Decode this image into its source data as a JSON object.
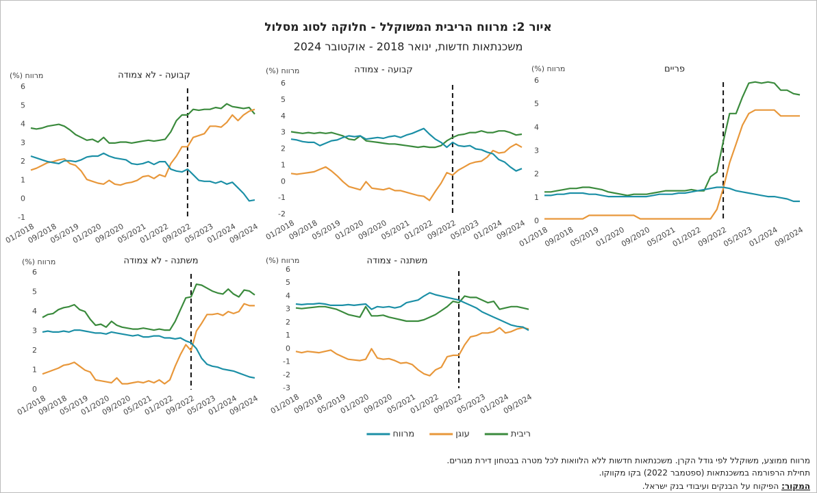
{
  "title": "איור 2: מרווח הריבית המשוקלל - חלוקה לסוג מסלול",
  "subtitle": "משכנתאות חדשות, ינואר 2018 - אוקטובר 2024",
  "notes": [
    "מרווח ממוצע, משוקלל לפי גודל הקרן. משכנתאות חדשות ללא הלוואות לכל מטרה בבטחון דירת מגורים.",
    "תחילת הרפורמה במשכנתאות (ספטמבר 2022) בקו  מקווקו."
  ],
  "source_label": "המקור:",
  "source_text": " הפיקוח על הבנקים ועיבודי בנק ישראל.",
  "chart_data": [
    {
      "type": "line",
      "title": "קבועה - לא צמודה",
      "ylabel": "מרווח (%)",
      "grid": false,
      "vline_x": "09/2022",
      "categories": [
        "01/2018",
        null,
        null,
        null,
        "09/2018",
        null,
        null,
        null,
        "05/2019",
        null,
        null,
        null,
        "01/2020",
        null,
        null,
        null,
        "09/2020",
        null,
        null,
        null,
        "05/2021",
        null,
        null,
        null,
        "01/2022",
        null,
        null,
        null,
        "09/2022",
        null,
        null,
        null,
        "05/2023",
        null,
        null,
        null,
        "01/2024",
        null,
        null,
        null,
        "09/2024"
      ],
      "ylim": [
        -1,
        6
      ],
      "yticks": [
        -1,
        0,
        1,
        2,
        3,
        4,
        5,
        6
      ],
      "series": [
        {
          "name": "ריבית",
          "color": "#3a8a3c",
          "values": [
            3.8,
            3.75,
            3.8,
            3.9,
            3.95,
            4.0,
            3.9,
            3.7,
            3.45,
            3.3,
            3.15,
            3.2,
            3.05,
            3.3,
            3.0,
            3.0,
            3.05,
            3.05,
            3.0,
            3.05,
            3.1,
            3.15,
            3.1,
            3.15,
            3.2,
            3.6,
            4.2,
            4.5,
            4.5,
            4.8,
            4.75,
            4.8,
            4.8,
            4.9,
            4.85,
            5.1,
            4.95,
            4.9,
            4.85,
            4.9,
            4.55
          ]
        },
        {
          "name": "עוגן",
          "color": "#e8973a",
          "values": [
            1.55,
            1.65,
            1.8,
            1.95,
            2.0,
            2.1,
            2.15,
            1.9,
            1.8,
            1.5,
            1.05,
            0.95,
            0.85,
            0.8,
            1.0,
            0.8,
            0.75,
            0.85,
            0.9,
            1.0,
            1.2,
            1.25,
            1.1,
            1.3,
            1.2,
            1.9,
            2.3,
            2.8,
            2.8,
            3.3,
            3.4,
            3.5,
            3.9,
            3.9,
            3.85,
            4.1,
            4.5,
            4.2,
            4.5,
            4.7,
            4.8
          ]
        },
        {
          "name": "מרווח",
          "color": "#1b8fa6",
          "values": [
            2.3,
            2.2,
            2.1,
            2.0,
            1.95,
            1.9,
            2.05,
            2.05,
            2.0,
            2.1,
            2.25,
            2.3,
            2.3,
            2.45,
            2.3,
            2.2,
            2.15,
            2.1,
            1.9,
            1.85,
            1.9,
            2.0,
            1.85,
            2.0,
            2.0,
            1.6,
            1.5,
            1.45,
            1.6,
            1.3,
            1.0,
            0.95,
            0.95,
            0.85,
            0.95,
            0.8,
            0.9,
            0.6,
            0.3,
            -0.1,
            -0.05
          ]
        }
      ]
    },
    {
      "type": "line",
      "title": "קבועה - צמודה",
      "ylabel": "מרווח (%)",
      "grid": false,
      "vline_x": "09/2022",
      "categories": [
        "01/2018",
        null,
        null,
        null,
        "09/2018",
        null,
        null,
        null,
        "05/2019",
        null,
        null,
        null,
        "01/2020",
        null,
        null,
        null,
        "09/2020",
        null,
        null,
        null,
        "05/2021",
        null,
        null,
        null,
        "01/2022",
        null,
        null,
        null,
        "09/2022",
        null,
        null,
        null,
        "05/2023",
        null,
        null,
        null,
        "01/2024",
        null,
        null,
        null,
        "09/2024"
      ],
      "ylim": [
        -2,
        6
      ],
      "yticks": [
        -2,
        -1,
        0,
        1,
        2,
        3,
        4,
        5,
        6
      ],
      "series": [
        {
          "name": "ריבית",
          "color": "#3a8a3c",
          "values": [
            3.05,
            3.0,
            2.95,
            3.0,
            2.95,
            3.0,
            2.95,
            3.0,
            2.9,
            2.8,
            2.6,
            2.55,
            2.8,
            2.5,
            2.45,
            2.4,
            2.35,
            2.3,
            2.3,
            2.25,
            2.2,
            2.15,
            2.1,
            2.15,
            2.1,
            2.1,
            2.2,
            2.5,
            2.7,
            2.85,
            2.9,
            3.0,
            3.0,
            3.1,
            3.0,
            3.0,
            3.1,
            3.1,
            3.0,
            2.85,
            2.9
          ]
        },
        {
          "name": "עוגן",
          "color": "#e8973a",
          "values": [
            0.5,
            0.45,
            0.5,
            0.55,
            0.6,
            0.75,
            0.9,
            0.65,
            0.35,
            0.0,
            -0.3,
            -0.4,
            -0.5,
            0.0,
            -0.4,
            -0.45,
            -0.5,
            -0.4,
            -0.55,
            -0.55,
            -0.65,
            -0.75,
            -0.85,
            -0.9,
            -1.15,
            -0.6,
            -0.1,
            0.55,
            0.4,
            0.7,
            0.9,
            1.1,
            1.2,
            1.25,
            1.5,
            1.9,
            1.75,
            1.8,
            2.1,
            2.3,
            2.1
          ]
        },
        {
          "name": "מרווח",
          "color": "#1b8fa6",
          "values": [
            2.6,
            2.55,
            2.45,
            2.4,
            2.4,
            2.2,
            2.35,
            2.5,
            2.55,
            2.7,
            2.8,
            2.75,
            2.8,
            2.6,
            2.65,
            2.7,
            2.65,
            2.75,
            2.8,
            2.7,
            2.85,
            2.95,
            3.1,
            3.25,
            2.9,
            2.6,
            2.4,
            2.1,
            2.4,
            2.2,
            2.15,
            2.2,
            2.0,
            1.95,
            1.8,
            1.7,
            1.35,
            1.2,
            0.9,
            0.65,
            0.8
          ]
        }
      ]
    },
    {
      "type": "line",
      "title": "פריים",
      "ylabel": "מרווח (%)",
      "grid": false,
      "vline_x": "09/2022",
      "categories": [
        "01/2018",
        null,
        null,
        null,
        "09/2018",
        null,
        null,
        null,
        "05/2019",
        null,
        null,
        null,
        "01/2020",
        null,
        null,
        null,
        "09/2020",
        null,
        null,
        null,
        "05/2021",
        null,
        null,
        null,
        "01/2022",
        null,
        null,
        null,
        "09/2022",
        null,
        null,
        null,
        "05/2023",
        null,
        null,
        null,
        "01/2024",
        null,
        null,
        null,
        "09/2024"
      ],
      "ylim": [
        0,
        6
      ],
      "yticks": [
        0,
        1,
        2,
        3,
        4,
        5,
        6
      ],
      "series": [
        {
          "name": "ריבית",
          "color": "#3a8a3c",
          "values": [
            1.25,
            1.25,
            1.3,
            1.35,
            1.4,
            1.4,
            1.45,
            1.45,
            1.4,
            1.35,
            1.25,
            1.2,
            1.15,
            1.1,
            1.15,
            1.15,
            1.15,
            1.2,
            1.25,
            1.3,
            1.3,
            1.3,
            1.3,
            1.35,
            1.3,
            1.3,
            1.9,
            2.1,
            3.4,
            4.6,
            4.6,
            5.3,
            5.9,
            5.95,
            5.9,
            5.95,
            5.9,
            5.6,
            5.6,
            5.45,
            5.4
          ]
        },
        {
          "name": "עוגן",
          "color": "#e8973a",
          "values": [
            0.1,
            0.1,
            0.1,
            0.1,
            0.1,
            0.1,
            0.1,
            0.25,
            0.25,
            0.25,
            0.25,
            0.25,
            0.25,
            0.25,
            0.25,
            0.1,
            0.1,
            0.1,
            0.1,
            0.1,
            0.1,
            0.1,
            0.1,
            0.1,
            0.1,
            0.1,
            0.1,
            0.5,
            1.4,
            2.5,
            3.3,
            4.1,
            4.6,
            4.75,
            4.75,
            4.75,
            4.75,
            4.5,
            4.5,
            4.5,
            4.5
          ]
        },
        {
          "name": "מרווח",
          "color": "#1b8fa6",
          "values": [
            1.1,
            1.1,
            1.15,
            1.15,
            1.2,
            1.2,
            1.2,
            1.15,
            1.15,
            1.1,
            1.05,
            1.05,
            1.05,
            1.05,
            1.05,
            1.05,
            1.05,
            1.1,
            1.15,
            1.15,
            1.15,
            1.2,
            1.2,
            1.25,
            1.3,
            1.35,
            1.4,
            1.45,
            1.45,
            1.4,
            1.3,
            1.25,
            1.2,
            1.15,
            1.1,
            1.05,
            1.05,
            1.0,
            0.95,
            0.85,
            0.85
          ]
        }
      ]
    },
    {
      "type": "line",
      "title": "משתנה - לא צמודה",
      "ylabel": "מרווח (%)",
      "grid": false,
      "vline_x": "09/2022",
      "categories": [
        "01/2018",
        null,
        null,
        null,
        "09/2018",
        null,
        null,
        null,
        "05/2019",
        null,
        null,
        null,
        "01/2020",
        null,
        null,
        null,
        "09/2020",
        null,
        null,
        null,
        "05/2021",
        null,
        null,
        null,
        "01/2022",
        null,
        null,
        null,
        "09/2022",
        null,
        null,
        null,
        "05/2023",
        null,
        null,
        null,
        "01/2024",
        null,
        null,
        null,
        "09/2024"
      ],
      "ylim": [
        0,
        6
      ],
      "yticks": [
        0,
        1,
        2,
        3,
        4,
        5,
        6
      ],
      "series": [
        {
          "name": "ריבית",
          "color": "#3a8a3c",
          "values": [
            3.7,
            3.85,
            3.9,
            4.1,
            4.2,
            4.25,
            4.35,
            4.1,
            4.0,
            3.6,
            3.3,
            3.35,
            3.2,
            3.5,
            3.3,
            3.2,
            3.15,
            3.1,
            3.1,
            3.15,
            3.1,
            3.05,
            3.1,
            3.05,
            3.05,
            3.5,
            4.1,
            4.7,
            4.75,
            5.4,
            5.35,
            5.2,
            5.05,
            4.95,
            4.9,
            5.15,
            4.9,
            4.75,
            5.1,
            5.05,
            4.85
          ]
        },
        {
          "name": "עוגן",
          "color": "#e8973a",
          "values": [
            0.8,
            0.9,
            1.0,
            1.1,
            1.25,
            1.3,
            1.4,
            1.2,
            1.0,
            0.9,
            0.5,
            0.45,
            0.4,
            0.35,
            0.6,
            0.3,
            0.3,
            0.35,
            0.4,
            0.35,
            0.45,
            0.35,
            0.5,
            0.3,
            0.5,
            1.2,
            1.8,
            2.3,
            2.0,
            3.0,
            3.4,
            3.85,
            3.85,
            3.9,
            3.8,
            4.0,
            3.9,
            4.0,
            4.4,
            4.3,
            4.3
          ]
        },
        {
          "name": "מרווח",
          "color": "#1b8fa6",
          "values": [
            2.95,
            3.0,
            2.95,
            2.95,
            3.0,
            2.95,
            3.05,
            3.05,
            3.0,
            2.95,
            2.9,
            2.9,
            2.85,
            2.95,
            2.9,
            2.85,
            2.8,
            2.75,
            2.8,
            2.7,
            2.7,
            2.75,
            2.75,
            2.65,
            2.65,
            2.6,
            2.65,
            2.5,
            2.4,
            2.1,
            1.6,
            1.3,
            1.2,
            1.15,
            1.05,
            1.0,
            0.95,
            0.85,
            0.75,
            0.65,
            0.6
          ]
        }
      ]
    },
    {
      "type": "line",
      "title": "משתנה - צמודה",
      "ylabel": "מרווח (%)",
      "grid": false,
      "vline_x": "09/2022",
      "categories": [
        "01/2018",
        null,
        null,
        null,
        "09/2018",
        null,
        null,
        null,
        "05/2019",
        null,
        null,
        null,
        "01/2020",
        null,
        null,
        null,
        "09/2020",
        null,
        null,
        null,
        "05/2021",
        null,
        null,
        null,
        "01/2022",
        null,
        null,
        null,
        "09/2022",
        null,
        null,
        null,
        "05/2023",
        null,
        null,
        null,
        "01/2024",
        null,
        null,
        null,
        "09/2024"
      ],
      "ylim": [
        -3,
        6
      ],
      "yticks": [
        -3,
        -2,
        -1,
        0,
        1,
        2,
        3,
        4,
        5,
        6
      ],
      "series": [
        {
          "name": "ריבית",
          "color": "#3a8a3c",
          "values": [
            3.1,
            3.05,
            3.1,
            3.15,
            3.2,
            3.2,
            3.1,
            3.0,
            2.8,
            2.6,
            2.5,
            2.4,
            3.2,
            2.5,
            2.5,
            2.55,
            2.4,
            2.3,
            2.2,
            2.1,
            2.1,
            2.1,
            2.2,
            2.4,
            2.6,
            2.9,
            3.2,
            3.6,
            3.5,
            4.0,
            3.9,
            3.9,
            3.7,
            3.5,
            3.6,
            3.0,
            3.1,
            3.2,
            3.2,
            3.1,
            3.0
          ]
        },
        {
          "name": "עוגן",
          "color": "#e8973a",
          "values": [
            -0.2,
            -0.3,
            -0.2,
            -0.25,
            -0.3,
            -0.2,
            -0.1,
            -0.4,
            -0.6,
            -0.8,
            -0.85,
            -0.9,
            -0.8,
            0.0,
            -0.7,
            -0.8,
            -0.75,
            -0.9,
            -1.1,
            -1.05,
            -1.2,
            -1.6,
            -1.9,
            -2.05,
            -1.6,
            -1.4,
            -0.6,
            -0.5,
            -0.5,
            0.3,
            0.9,
            1.0,
            1.2,
            1.2,
            1.3,
            1.6,
            1.2,
            1.3,
            1.5,
            1.6,
            1.5
          ]
        },
        {
          "name": "מרווח",
          "color": "#1b8fa6",
          "values": [
            3.4,
            3.35,
            3.4,
            3.4,
            3.45,
            3.4,
            3.3,
            3.3,
            3.3,
            3.35,
            3.3,
            3.35,
            3.4,
            3.0,
            3.2,
            3.15,
            3.2,
            3.1,
            3.2,
            3.5,
            3.6,
            3.7,
            4.0,
            4.25,
            4.1,
            4.0,
            3.9,
            3.8,
            3.7,
            3.5,
            3.3,
            3.1,
            2.8,
            2.6,
            2.4,
            2.2,
            2.0,
            1.8,
            1.7,
            1.65,
            1.4
          ]
        }
      ]
    }
  ]
}
